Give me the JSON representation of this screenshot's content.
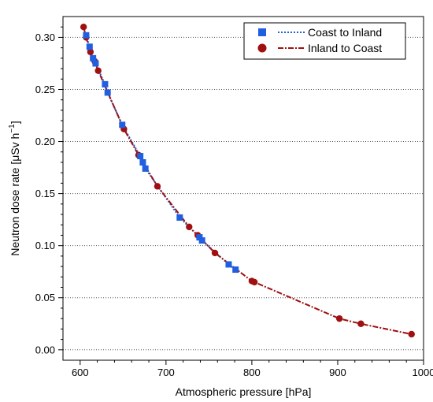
{
  "chart_data": {
    "type": "scatter",
    "xlabel": "Atmospheric pressure [hPa]",
    "ylabel": "Neutron dose rate [μSv h",
    "ylabel_sup": "−1",
    "ylabel_end": "]",
    "xlim": [
      580,
      1000
    ],
    "ylim": [
      -0.01,
      0.32
    ],
    "x_ticks": [
      600,
      700,
      800,
      900,
      1000
    ],
    "y_ticks": [
      0.0,
      0.05,
      0.1,
      0.15,
      0.2,
      0.25,
      0.3
    ],
    "y_tick_labels": [
      "0.00",
      "0.05",
      "0.10",
      "0.15",
      "0.20",
      "0.25",
      "0.30"
    ],
    "grid": "horizontal dotted",
    "legend": "top-right",
    "series": [
      {
        "name": "Coast to Inland",
        "marker": "square",
        "line": "dotted",
        "color": "#1f5fe0",
        "x": [
          607,
          611,
          615,
          618,
          629,
          632,
          649,
          670,
          673,
          676,
          716,
          739,
          742,
          773,
          781
        ],
        "y": [
          0.302,
          0.291,
          0.28,
          0.275,
          0.255,
          0.247,
          0.216,
          0.186,
          0.18,
          0.174,
          0.127,
          0.108,
          0.105,
          0.082,
          0.077
        ]
      },
      {
        "name": "Inland to Coast",
        "marker": "circle",
        "line": "dash-dot",
        "color": "#a01010",
        "x": [
          604,
          607,
          612,
          617,
          621,
          651,
          668,
          690,
          727,
          737,
          757,
          800,
          803,
          902,
          927,
          986
        ],
        "y": [
          0.31,
          0.3,
          0.286,
          0.277,
          0.268,
          0.212,
          0.187,
          0.157,
          0.118,
          0.11,
          0.093,
          0.066,
          0.065,
          0.03,
          0.025,
          0.015
        ]
      }
    ]
  }
}
